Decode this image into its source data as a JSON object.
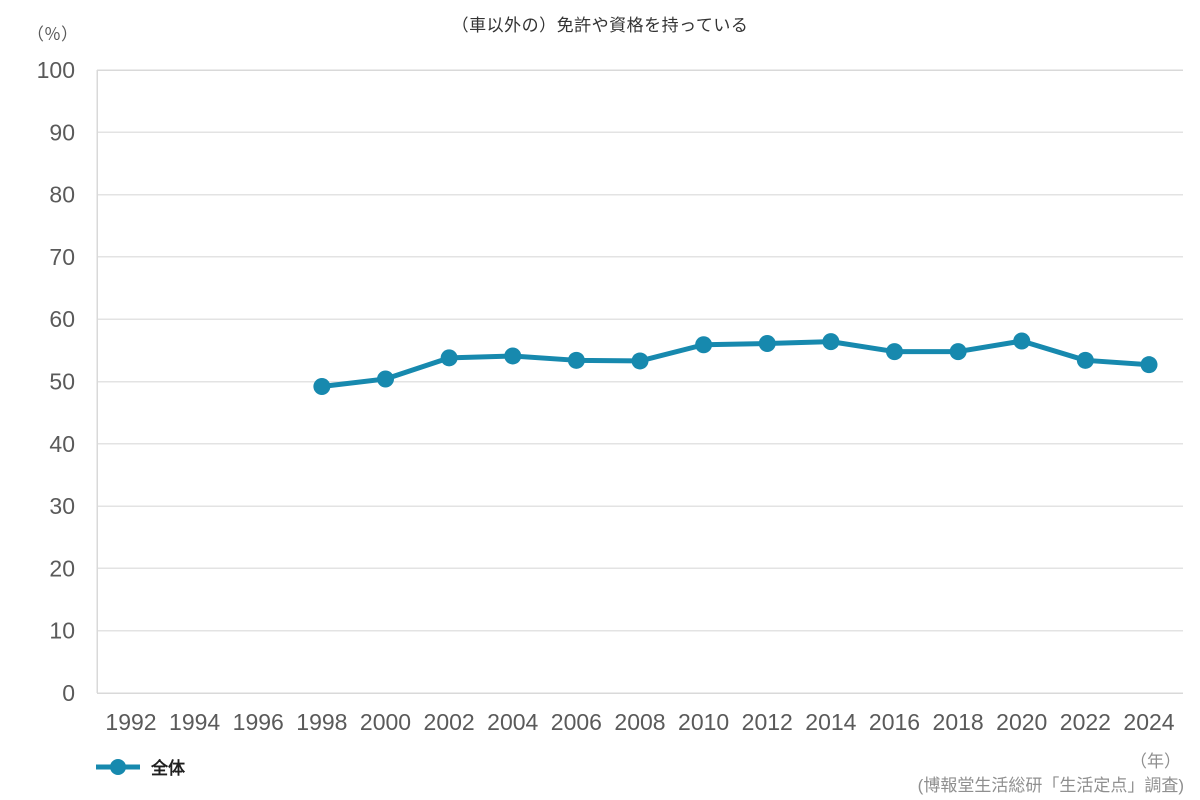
{
  "title": "（車以外の）免許や資格を持っている",
  "y_unit_label": "（％）",
  "x_unit_label": "（年）",
  "source": "(博報堂生活総研「生活定点」調査)",
  "colors": {
    "series": "#1789AE",
    "grid": "#e3e3e3",
    "axis_border": "#d9d9d9",
    "tick_text": "#5a5a5a",
    "title_text": "#333333",
    "footer_text": "#8f8f8f"
  },
  "chart_data": {
    "type": "line",
    "title": "（車以外の）免許や資格を持っている",
    "xlabel": "年",
    "ylabel": "％",
    "x_ticks": [
      1992,
      1994,
      1996,
      1998,
      2000,
      2002,
      2004,
      2006,
      2008,
      2010,
      2012,
      2014,
      2016,
      2018,
      2020,
      2022,
      2024
    ],
    "y_ticks": [
      0,
      10,
      20,
      30,
      40,
      50,
      60,
      70,
      80,
      90,
      100
    ],
    "ylim": [
      0,
      100
    ],
    "grid": true,
    "legend_position": "bottom-left",
    "series": [
      {
        "name": "全体",
        "color": "#1789AE",
        "x": [
          1998,
          2000,
          2002,
          2004,
          2006,
          2008,
          2010,
          2012,
          2014,
          2016,
          2018,
          2020,
          2022,
          2024
        ],
        "values": [
          49.2,
          50.4,
          53.8,
          54.1,
          53.4,
          53.3,
          55.9,
          56.1,
          56.4,
          54.8,
          54.8,
          56.5,
          53.4,
          52.7
        ]
      }
    ]
  }
}
